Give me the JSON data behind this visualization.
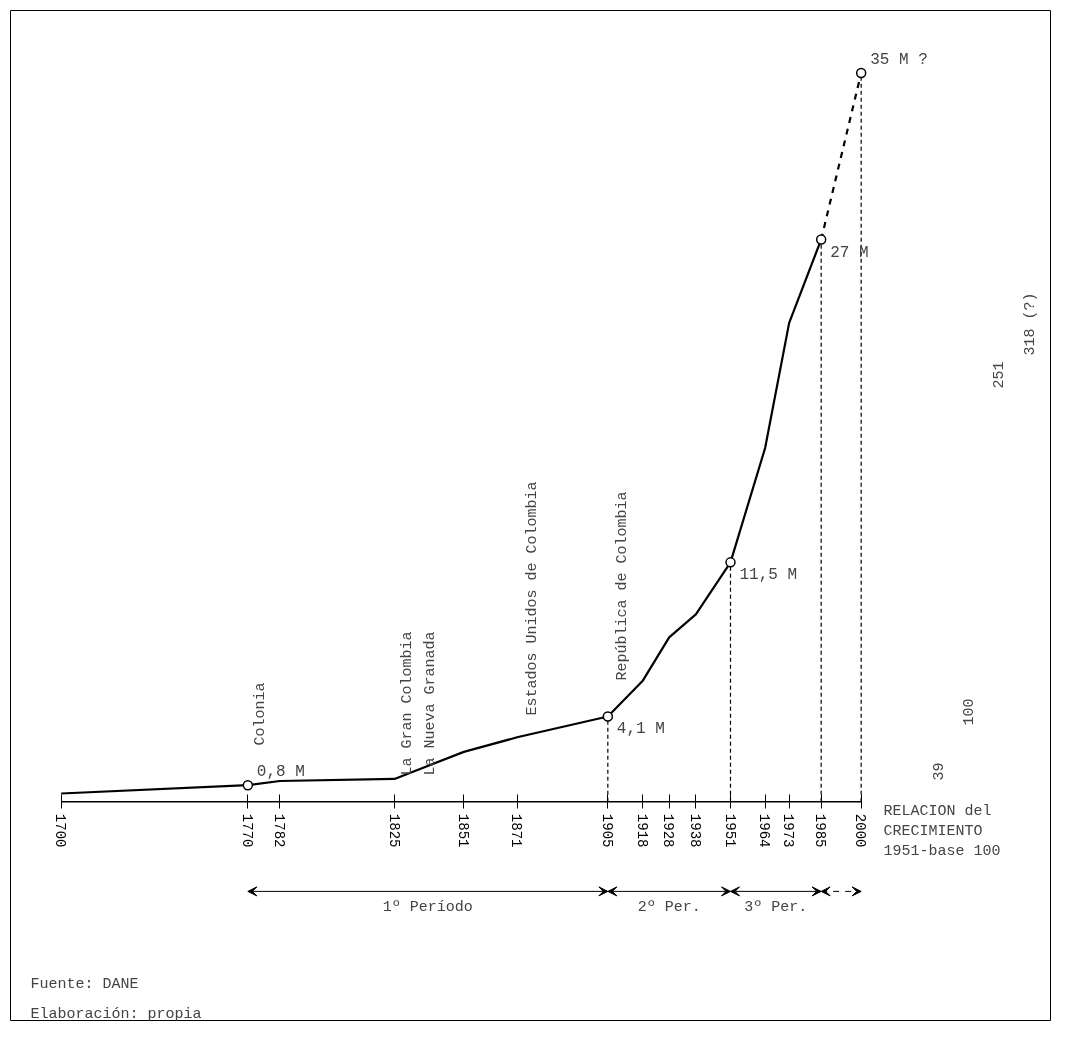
{
  "chart_data": {
    "type": "line",
    "xlim": [
      1681,
      2071
    ],
    "ylim": [
      -10.5,
      38
    ],
    "xticks": [
      1700,
      1770,
      1782,
      1825,
      1851,
      1871,
      1905,
      1918,
      1928,
      1938,
      1951,
      1964,
      1973,
      1985,
      2000
    ],
    "tick_labels": "x",
    "grid": false,
    "series": [
      {
        "color": "#000000",
        "line_style": "solid",
        "x": [
          1700,
          1770,
          1782,
          1825,
          1851,
          1871,
          1905,
          1918,
          1928,
          1938,
          1951,
          1964,
          1973,
          1985
        ],
        "values": [
          0.4,
          0.8,
          1.0,
          1.1,
          2.4,
          3.1,
          4.1,
          5.8,
          7.9,
          9.0,
          11.5,
          17,
          23,
          27
        ]
      },
      {
        "color": "#000000",
        "line_style": "dashed",
        "x": [
          1985,
          2000
        ],
        "values": [
          27,
          35
        ]
      },
      {
        "type": "scatter",
        "color": "#000000",
        "marker": "circle",
        "x": [
          1770,
          1905,
          1951,
          1985,
          2000
        ],
        "values": [
          0.8,
          4.1,
          11.5,
          27,
          35
        ],
        "value_labels": [
          "0,8 M",
          "4,1 M",
          "11,5 M",
          "27 M",
          "35 M ?"
        ]
      }
    ],
    "ref_lines": [
      {
        "axis": "x",
        "value": 1905,
        "line_style": "dashed"
      },
      {
        "axis": "x",
        "value": 1951,
        "line_style": "dashed"
      },
      {
        "axis": "x",
        "value": 1985,
        "line_style": "dashed"
      },
      {
        "axis": "x",
        "value": 2000,
        "line_style": "dashed"
      }
    ],
    "annotations": [
      "Colonia",
      "La Gran Colombia",
      "La Nueva Granada",
      "Estados Unidos de Colombia",
      "República de Colombia",
      "1º Período",
      "2º Per.",
      "3º Per.",
      "39",
      "100",
      "251",
      "318 (?)",
      "RELACION del\nCRECIMIENTO\n1951-base 100",
      "Fuente: DANE",
      "Elaboración: propia"
    ]
  }
}
